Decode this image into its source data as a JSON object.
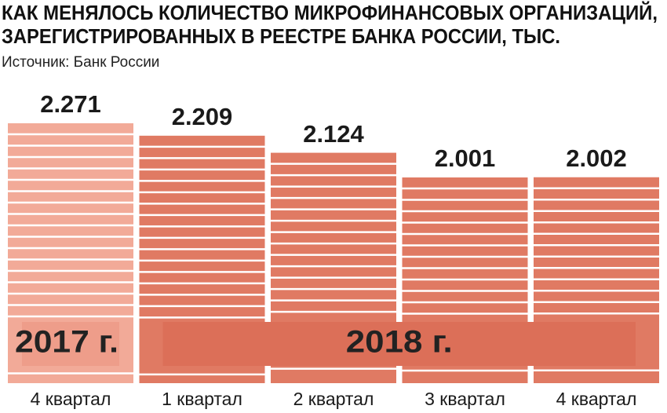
{
  "chart_data": {
    "type": "bar",
    "title": [
      "КАК МЕНЯЛОСЬ КОЛИЧЕСТВО МИКРОФИНАНСОВЫХ ОРГАНИЗАЦИЙ,",
      "ЗАРЕГИСТРИРОВАННЫХ В РЕЕСТРЕ БАНКА РОССИИ, ТЫС."
    ],
    "subtitle": "Источник: Банк России",
    "categories": [
      "4 квартал",
      "1 квартал",
      "2 квартал",
      "3 квартал",
      "4 квартал"
    ],
    "values": [
      2.271,
      2.209,
      2.124,
      2.001,
      2.002
    ],
    "colors": [
      "#f2aa98",
      "#e07a63",
      "#e07a63",
      "#e07a63",
      "#e07a63"
    ],
    "groups": [
      "2017 г.",
      "2018 г."
    ]
  }
}
